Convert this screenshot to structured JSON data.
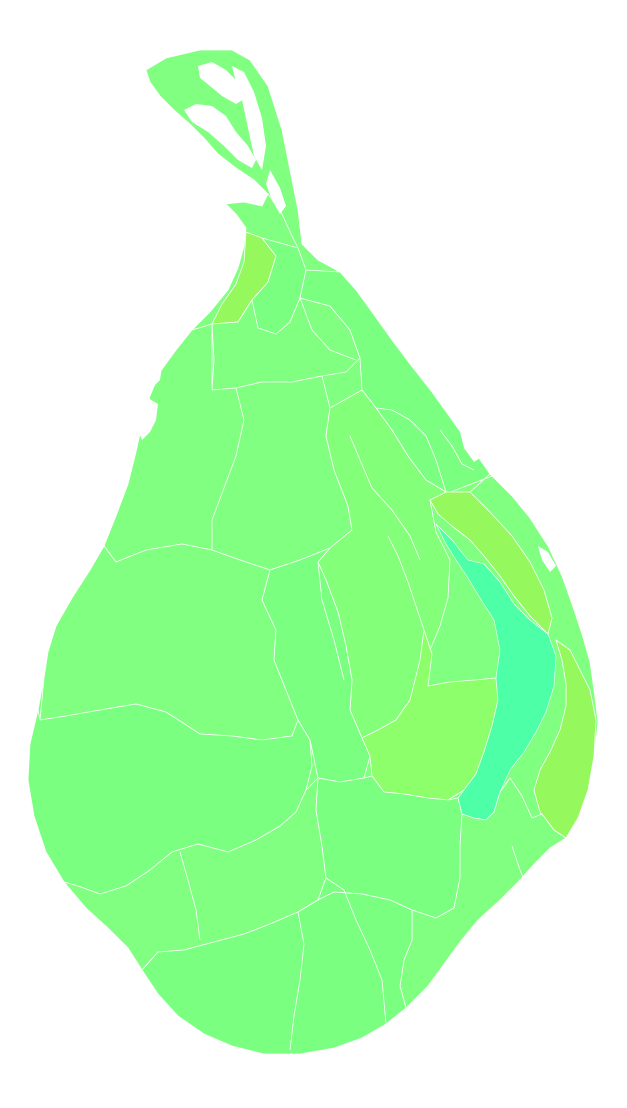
{
  "map": {
    "colors": {
      "background": "#ffffff",
      "base": "#80ff80",
      "alt_a": "#7aff80",
      "alt_b": "#84ff7a",
      "alt_c": "#8cff6a",
      "alt_d": "#95f85c",
      "water": "#4dffa6",
      "border": "#ffffff"
    },
    "regions": [
      {
        "id": "northern-peninsula",
        "fill": "base"
      },
      {
        "id": "north-west-strip",
        "fill": "alt_d"
      },
      {
        "id": "north-central-a",
        "fill": "alt_a"
      },
      {
        "id": "north-central-b",
        "fill": "base"
      },
      {
        "id": "north-east-coast",
        "fill": "alt_a"
      },
      {
        "id": "central-north",
        "fill": "base"
      },
      {
        "id": "central-east",
        "fill": "alt_b"
      },
      {
        "id": "west-upper",
        "fill": "base"
      },
      {
        "id": "west-middle",
        "fill": "alt_a"
      },
      {
        "id": "centre-corridor",
        "fill": "alt_a"
      },
      {
        "id": "east-central",
        "fill": "alt_c"
      },
      {
        "id": "east-coastal-band",
        "fill": "alt_d"
      },
      {
        "id": "east-lake",
        "fill": "water"
      },
      {
        "id": "south-east-coast",
        "fill": "alt_d"
      },
      {
        "id": "south-west",
        "fill": "base"
      },
      {
        "id": "south-central",
        "fill": "alt_a"
      },
      {
        "id": "south-south-east",
        "fill": "base"
      },
      {
        "id": "south-tip",
        "fill": "alt_a"
      }
    ]
  }
}
